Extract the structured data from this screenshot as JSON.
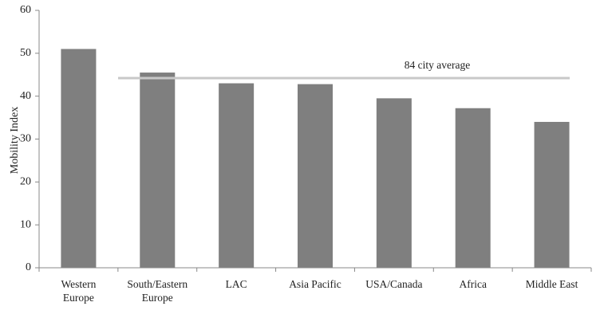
{
  "chart_data": {
    "type": "bar",
    "categories": [
      [
        "Western",
        "Europe"
      ],
      [
        "South/Eastern",
        "Europe"
      ],
      [
        "LAC"
      ],
      [
        "Asia Pacific"
      ],
      [
        "USA/Canada"
      ],
      [
        "Africa"
      ],
      [
        "Middle East"
      ]
    ],
    "values": [
      51.0,
      45.5,
      43.0,
      42.8,
      39.5,
      37.2,
      34.0
    ],
    "ylabel": "Mobility Index",
    "xlabel": "",
    "ylim": [
      0,
      60
    ],
    "yticks": [
      0,
      10,
      20,
      30,
      40,
      50,
      60
    ],
    "reference_line": {
      "value": 44.2,
      "label": "84 city average"
    },
    "grid": false,
    "legend": "none",
    "colors": {
      "bar": "#7f7f7f",
      "reference_line": "#c8c8c8",
      "axis": "#888888"
    }
  }
}
